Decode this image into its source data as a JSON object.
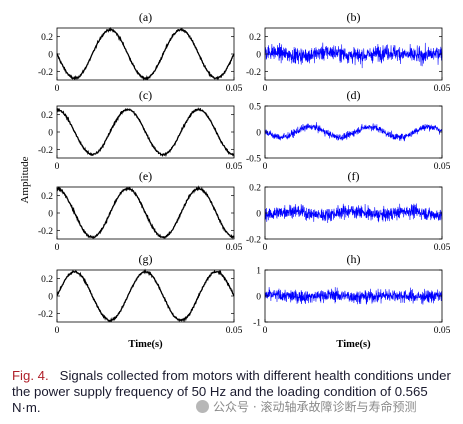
{
  "figure": {
    "y_axis_label": "Amplitude",
    "x_axis_label": "Time(s)"
  },
  "caption": {
    "label": "Fig. 4.",
    "text": "Signals collected from motors with different health conditions under the power supply frequency of 50 Hz and the loading condition of 0.565 N·m."
  },
  "watermark": {
    "text": "公众号 · 滚动轴承故障诊断与寿命预测"
  },
  "colors": {
    "left_signal": "#000000",
    "right_signal": "#0000ff",
    "caption_label": "#b0202a"
  },
  "chart_data": [
    {
      "panel": "(a)",
      "type": "line",
      "color": "#000000",
      "signal": "sine",
      "frequency_hz": 50,
      "amplitude": 0.28,
      "phase_deg": 180,
      "noise": 0.008,
      "xlim": [
        0,
        0.05
      ],
      "ylim": [
        -0.3,
        0.3
      ],
      "xticks": [
        0,
        0.05
      ],
      "yticks": [
        0.2,
        0,
        -0.2
      ],
      "xtick_labels": [
        "0",
        "0.05"
      ],
      "ytick_labels": [
        "0.2",
        "0",
        "-0.2"
      ],
      "xlabel": ""
    },
    {
      "panel": "(b)",
      "type": "line",
      "color": "#0000ff",
      "signal": "noise",
      "mean": 0,
      "std": 0.08,
      "drift": 0.02,
      "xlim": [
        0,
        0.05
      ],
      "ylim": [
        -0.3,
        0.3
      ],
      "xticks": [
        0,
        0.05
      ],
      "yticks": [
        0.2,
        0,
        -0.2
      ],
      "xtick_labels": [
        "0",
        "0.05"
      ],
      "ytick_labels": [
        "0.2",
        "0",
        "-0.2"
      ],
      "xlabel": ""
    },
    {
      "panel": "(c)",
      "type": "line",
      "color": "#000000",
      "signal": "sine",
      "frequency_hz": 50,
      "amplitude": 0.26,
      "phase_deg": 90,
      "noise": 0.008,
      "xlim": [
        0,
        0.05
      ],
      "ylim": [
        -0.3,
        0.3
      ],
      "xticks": [
        0,
        0.05
      ],
      "yticks": [
        0.2,
        0,
        -0.2
      ],
      "xtick_labels": [
        "0",
        "0.05"
      ],
      "ytick_labels": [
        "0.2",
        "0",
        "-0.2"
      ],
      "xlabel": ""
    },
    {
      "panel": "(d)",
      "type": "line",
      "color": "#0000ff",
      "signal": "noise",
      "mean": 0,
      "std": 0.06,
      "drift": 0.1,
      "xlim": [
        0,
        0.05
      ],
      "ylim": [
        -0.5,
        0.5
      ],
      "xticks": [
        0,
        0.05
      ],
      "yticks": [
        0.5,
        0,
        -0.5
      ],
      "xtick_labels": [
        "0",
        "0.05"
      ],
      "ytick_labels": [
        "0.5",
        "0",
        "-0.5"
      ],
      "xlabel": ""
    },
    {
      "panel": "(e)",
      "type": "line",
      "color": "#000000",
      "signal": "sine",
      "frequency_hz": 50,
      "amplitude": 0.28,
      "phase_deg": 90,
      "noise": 0.008,
      "xlim": [
        0,
        0.05
      ],
      "ylim": [
        -0.3,
        0.3
      ],
      "xticks": [
        0,
        0.05
      ],
      "yticks": [
        0.2,
        0,
        -0.2
      ],
      "xtick_labels": [
        "0",
        "0.05"
      ],
      "ytick_labels": [
        "0.2",
        "0",
        "-0.2"
      ],
      "xlabel": ""
    },
    {
      "panel": "(f)",
      "type": "line",
      "color": "#0000ff",
      "signal": "noise",
      "mean": 0,
      "std": 0.045,
      "drift": 0.015,
      "xlim": [
        0,
        0.05
      ],
      "ylim": [
        -0.2,
        0.2
      ],
      "xticks": [
        0,
        0.05
      ],
      "yticks": [
        0.2,
        0,
        -0.2
      ],
      "xtick_labels": [
        "0",
        "0.05"
      ],
      "ytick_labels": [
        "0.2",
        "0",
        "-0.2"
      ],
      "xlabel": ""
    },
    {
      "panel": "(g)",
      "type": "line",
      "color": "#000000",
      "signal": "sine",
      "frequency_hz": 50,
      "amplitude": 0.28,
      "phase_deg": 0,
      "noise": 0.008,
      "xlim": [
        0,
        0.05
      ],
      "ylim": [
        -0.3,
        0.3
      ],
      "xticks": [
        0,
        0.05
      ],
      "yticks": [
        0.2,
        0,
        -0.2
      ],
      "xtick_labels": [
        "0",
        "0.05"
      ],
      "ytick_labels": [
        "0.2",
        "0",
        "-0.2"
      ],
      "xlabel": "Time(s)"
    },
    {
      "panel": "(h)",
      "type": "line",
      "color": "#0000ff",
      "signal": "noise",
      "mean": 0,
      "std": 0.22,
      "drift": 0.03,
      "xlim": [
        0,
        0.05
      ],
      "ylim": [
        -1,
        1
      ],
      "xticks": [
        0,
        0.05
      ],
      "yticks": [
        1,
        0,
        -1
      ],
      "xtick_labels": [
        "0",
        "0.05"
      ],
      "ytick_labels": [
        "1",
        "0",
        "-1"
      ],
      "xlabel": "Time(s)"
    }
  ]
}
